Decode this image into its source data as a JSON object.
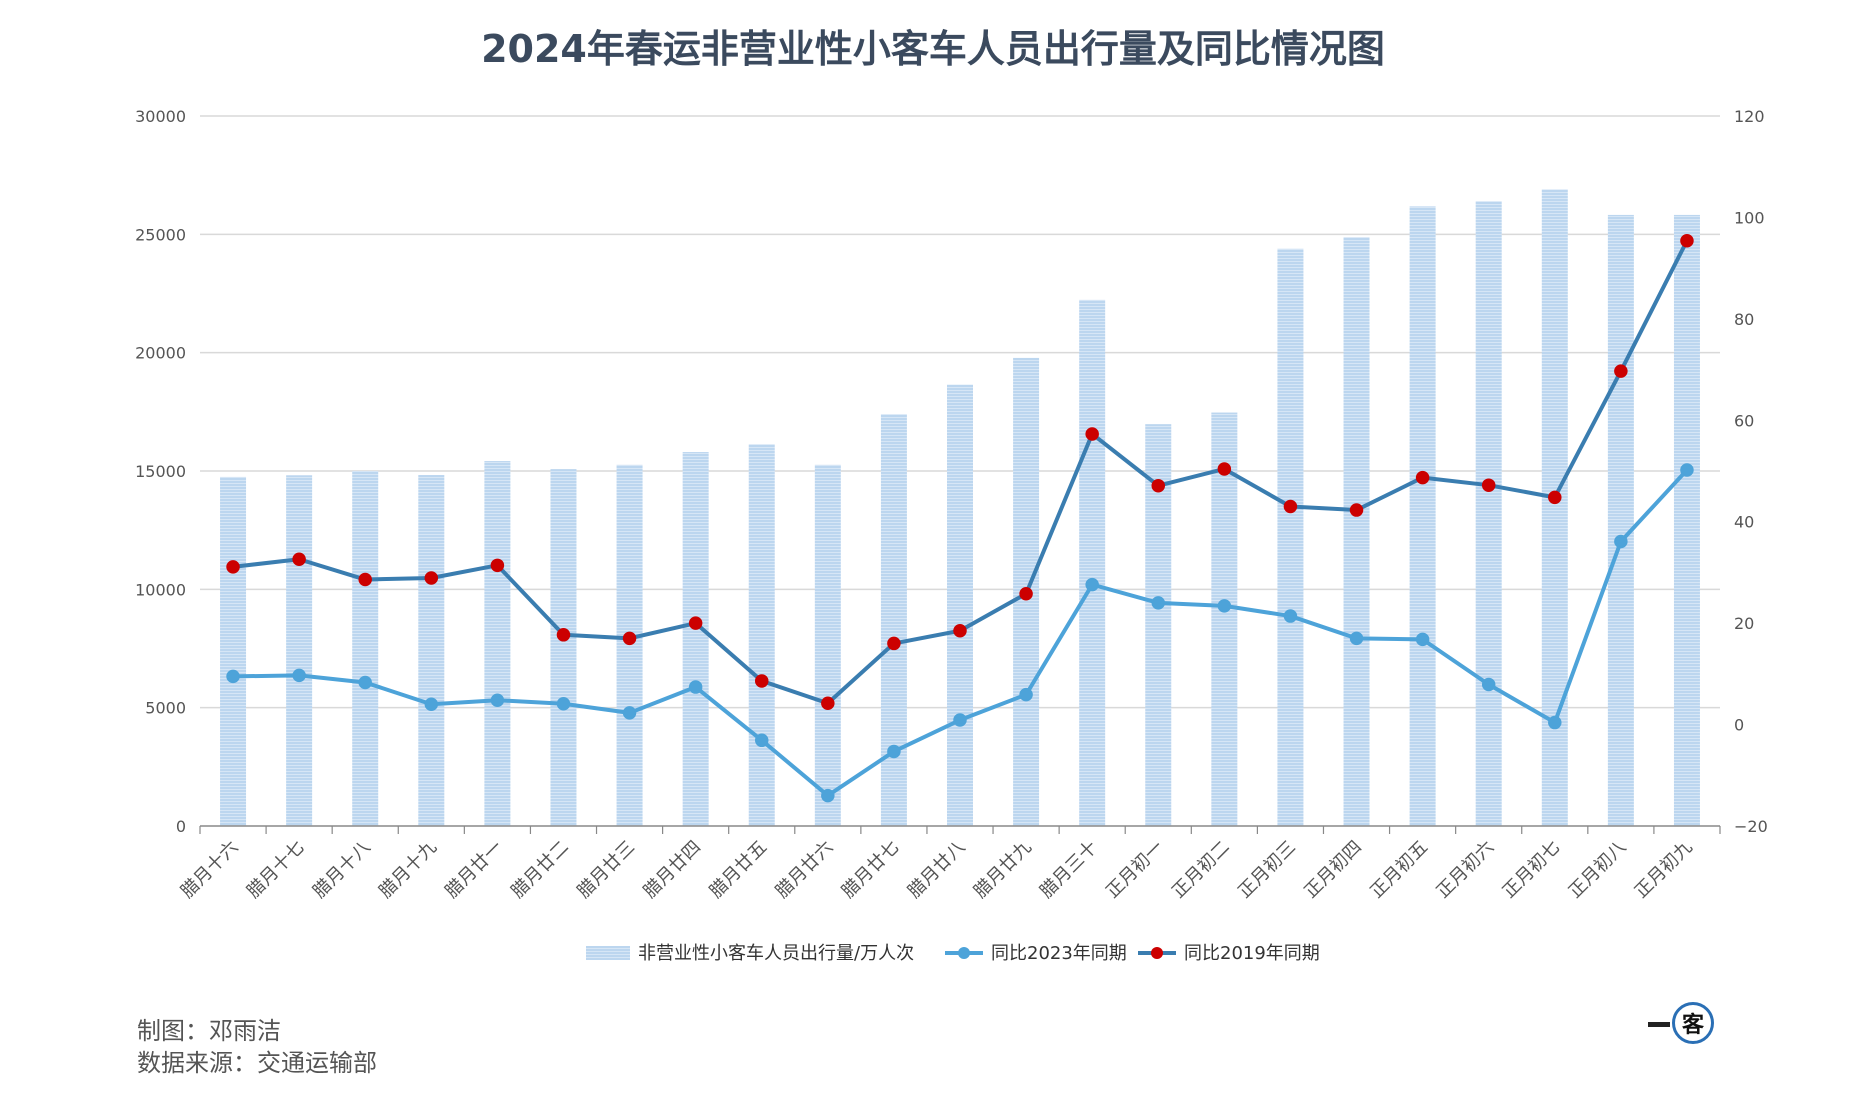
{
  "title": "2024年春运非营业性小客车人员出行量及同比情况图",
  "credits": {
    "author": "制图：邓雨洁",
    "source": "数据来源：交通运输部"
  },
  "logo_text": "客",
  "colors": {
    "bar": "#bcd6ef",
    "bar_stripe": "#d6e6f6",
    "line_2023": "#4da3d9",
    "line_2019": "#3a7db0",
    "marker_2019": "#cc0000",
    "grid": "#d9d9d9",
    "axis": "#888888"
  },
  "chart_data": {
    "type": "bar",
    "title": "2024年春运非营业性小客车人员出行量及同比情况图",
    "categories": [
      "腊月十六",
      "腊月十七",
      "腊月十八",
      "腊月十九",
      "腊月廿一",
      "腊月廿二",
      "腊月廿三",
      "腊月廿四",
      "腊月廿五",
      "腊月廿六",
      "腊月廿七",
      "腊月廿八",
      "腊月廿九",
      "腊月三十",
      "正月初一",
      "正月初二",
      "正月初三",
      "正月初四",
      "正月初五",
      "正月初六",
      "正月初七",
      "正月初八",
      "正月初九"
    ],
    "left_axis": {
      "ylim": [
        0,
        30000
      ],
      "ticks": [
        0,
        5000,
        10000,
        15000,
        20000,
        25000,
        30000
      ]
    },
    "right_axis": {
      "ylim": [
        -20,
        120
      ],
      "ticks": [
        -20,
        0,
        20,
        40,
        60,
        80,
        100,
        120
      ]
    },
    "grid": true,
    "legend_position": "bottom",
    "series": [
      {
        "name": "非营业性小客车人员出行量/万人次",
        "type": "bar",
        "axis": "left",
        "values": [
          14750,
          14820,
          15000,
          14830,
          15420,
          15080,
          15260,
          15800,
          16130,
          15260,
          17400,
          18650,
          19780,
          22230,
          16980,
          17470,
          24390,
          24880,
          26180,
          26400,
          26900,
          25820,
          25820
        ]
      },
      {
        "name": "同比2023年同期",
        "type": "line",
        "axis": "right",
        "values": [
          9.5,
          9.7,
          8.3,
          4.0,
          4.8,
          4.1,
          2.3,
          7.4,
          -3.1,
          -14.0,
          -5.3,
          0.9,
          5.9,
          27.6,
          24.0,
          23.4,
          21.4,
          17.0,
          16.8,
          7.9,
          0.4,
          36.1,
          50.2
        ]
      },
      {
        "name": "同比2019年同期",
        "type": "line",
        "axis": "right",
        "values": [
          31.1,
          32.6,
          28.6,
          28.9,
          31.4,
          17.7,
          17.0,
          20.0,
          8.6,
          4.2,
          16.0,
          18.5,
          25.8,
          57.3,
          47.1,
          50.4,
          43.0,
          42.3,
          48.7,
          47.2,
          44.8,
          69.7,
          95.4
        ]
      }
    ]
  }
}
